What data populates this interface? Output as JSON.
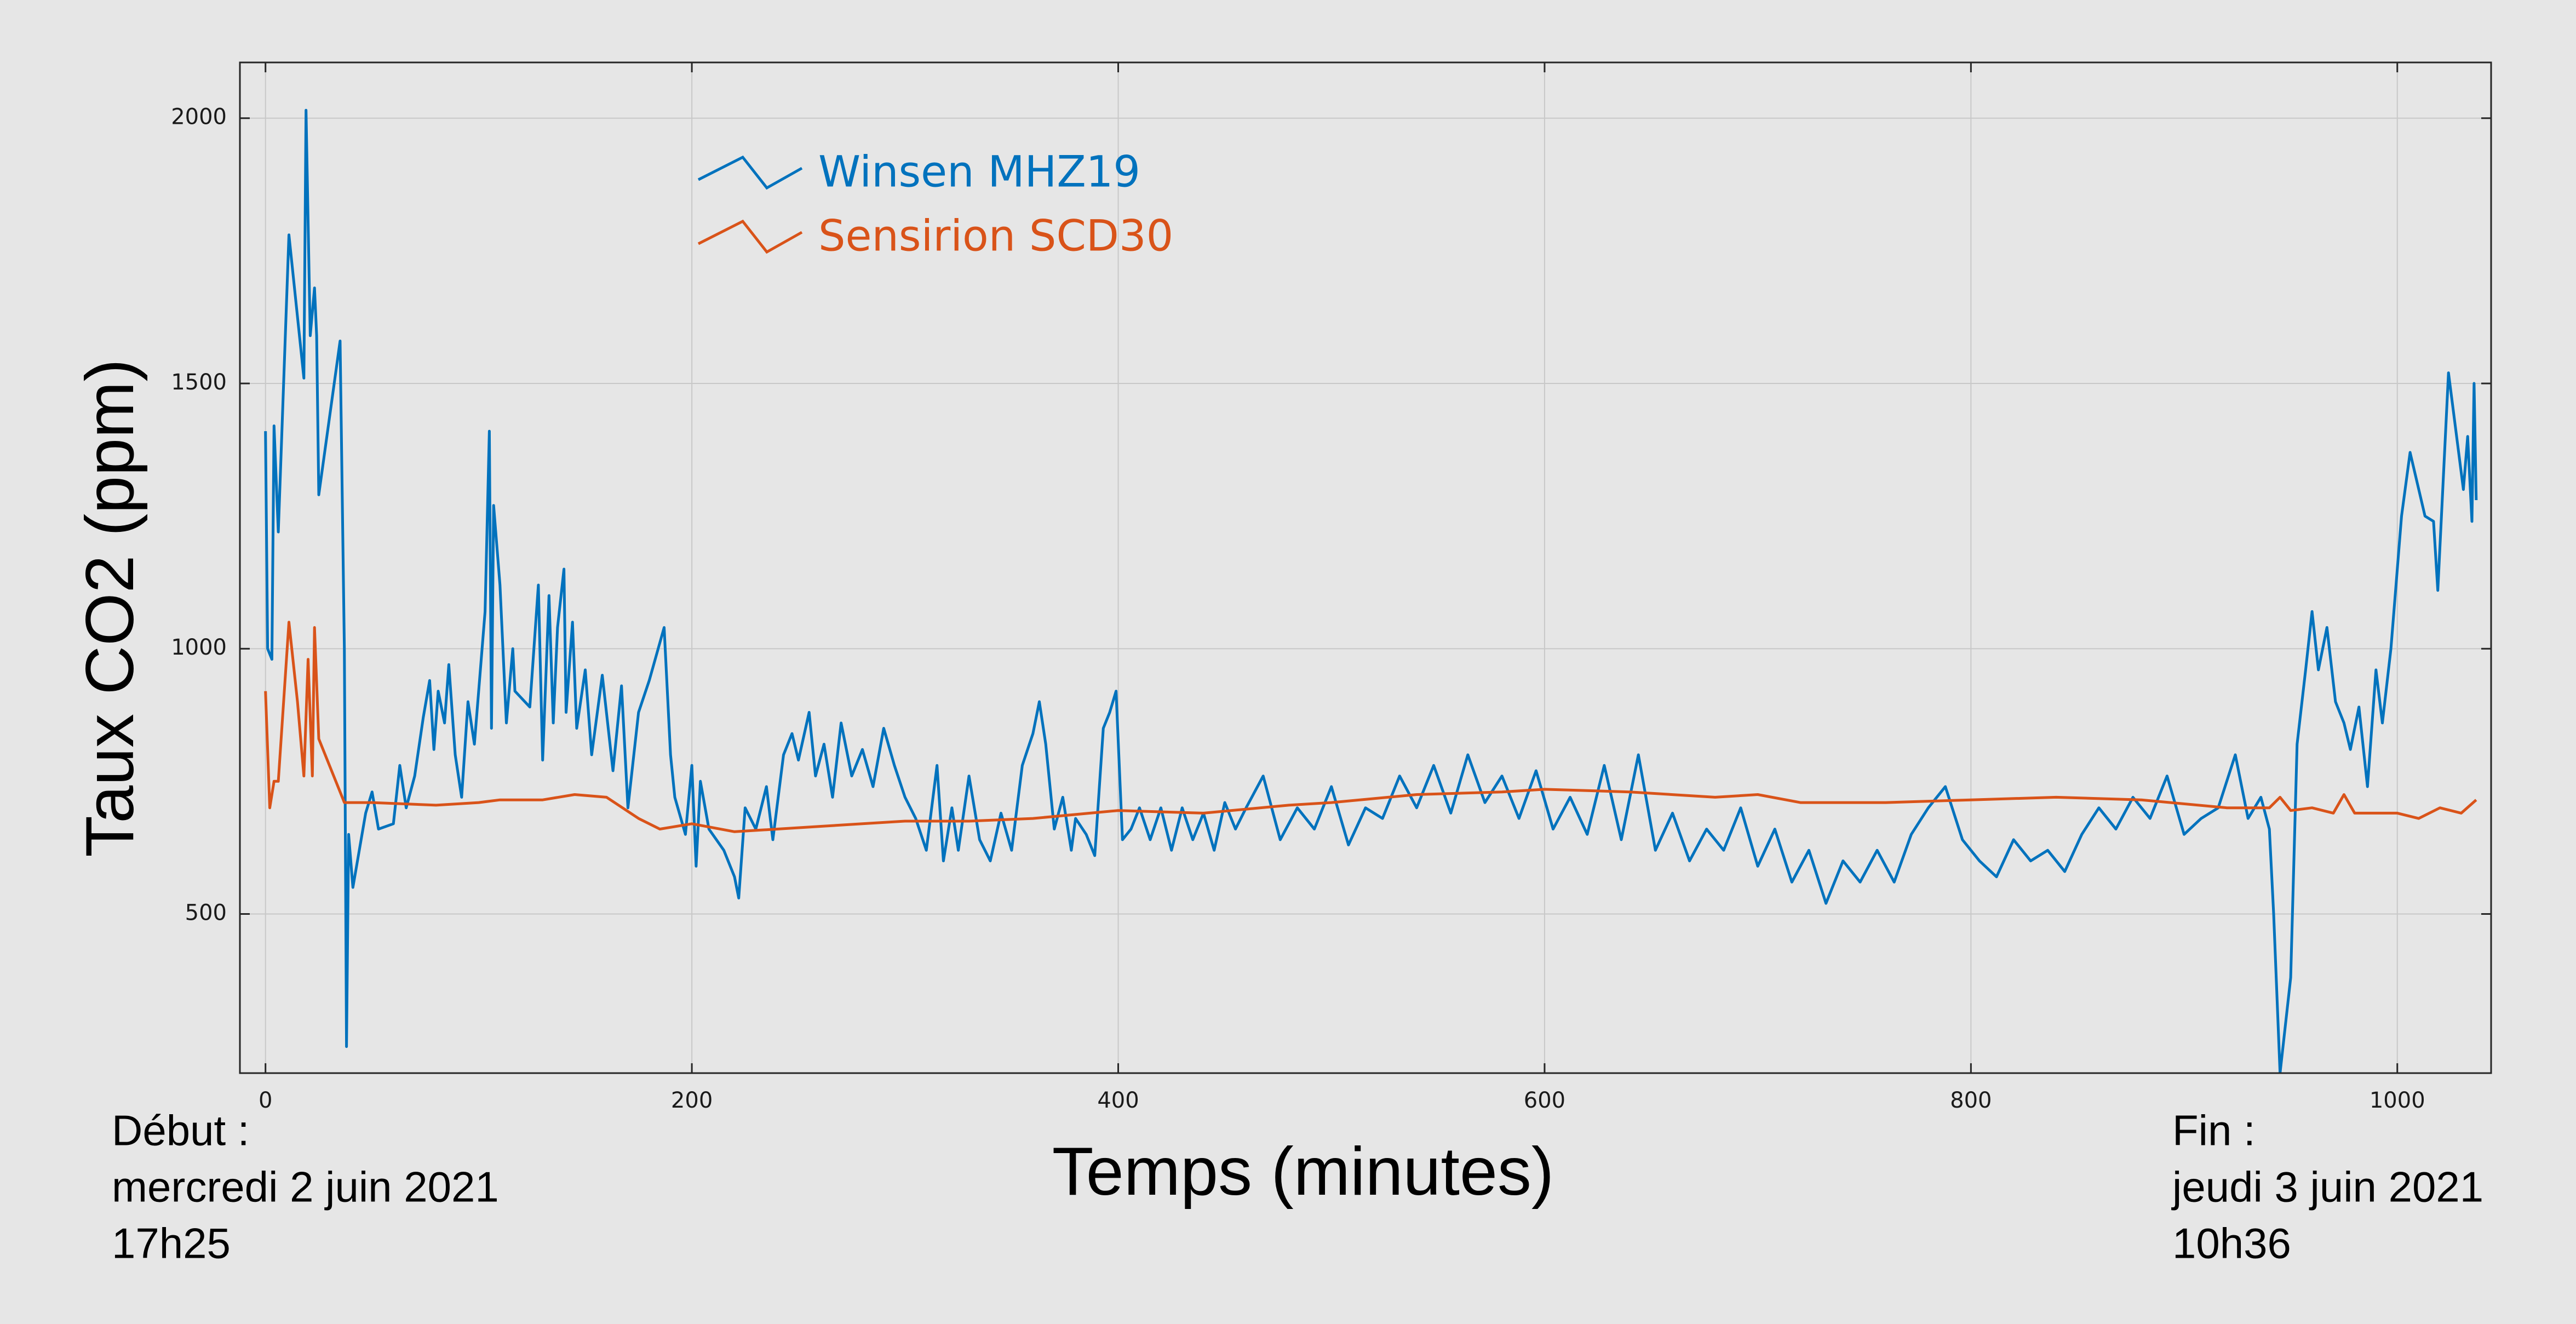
{
  "chart_data": {
    "type": "line",
    "xlabel": "Temps (minutes)",
    "ylabel": "Taux CO2 (ppm)",
    "annotations_left": [
      "Début :",
      "mercredi 2 juin 2021",
      "17h25"
    ],
    "annotations_right": [
      "Fin :",
      "jeudi 3 juin 2021",
      "10h36"
    ],
    "xlim": [
      -12,
      1044
    ],
    "ylim": [
      200,
      2105
    ],
    "xticks": [
      0,
      200,
      400,
      600,
      800,
      1000
    ],
    "yticks": [
      500,
      1000,
      1500,
      2000
    ],
    "grid": true,
    "legend": "upper left",
    "series": [
      {
        "name": "Winsen MHZ19",
        "color": "#0072bd",
        "x": [
          0,
          1,
          3,
          4,
          6,
          11,
          18,
          19,
          21,
          23,
          24,
          25,
          35,
          37,
          38,
          39,
          41,
          47,
          50,
          53,
          60,
          63,
          66,
          70,
          74,
          77,
          79,
          81,
          84,
          86,
          89,
          92,
          95,
          98,
          100,
          103,
          105,
          106,
          107,
          110,
          113,
          116,
          117,
          124,
          128,
          130,
          133,
          135,
          137,
          140,
          141,
          144,
          146,
          150,
          153,
          158,
          163,
          167,
          170,
          175,
          180,
          187,
          190,
          192,
          197,
          200,
          202,
          204,
          208,
          215,
          220,
          222,
          225,
          230,
          235,
          238,
          243,
          247,
          250,
          255,
          258,
          262,
          266,
          270,
          275,
          280,
          285,
          290,
          295,
          300,
          305,
          310,
          315,
          318,
          322,
          325,
          330,
          335,
          340,
          345,
          350,
          355,
          360,
          363,
          366,
          370,
          374,
          378,
          380,
          385,
          389,
          393,
          396,
          399,
          402,
          406,
          410,
          415,
          420,
          425,
          430,
          435,
          440,
          445,
          450,
          455,
          460,
          468,
          476,
          484,
          492,
          500,
          508,
          516,
          524,
          532,
          540,
          548,
          556,
          564,
          572,
          580,
          588,
          596,
          604,
          612,
          620,
          628,
          636,
          644,
          652,
          660,
          668,
          676,
          684,
          692,
          700,
          708,
          716,
          724,
          732,
          740,
          748,
          756,
          764,
          772,
          780,
          788,
          796,
          804,
          812,
          820,
          828,
          836,
          844,
          852,
          860,
          868,
          876,
          884,
          892,
          900,
          908,
          916,
          924,
          930,
          936,
          940,
          942,
          945,
          950,
          953,
          957,
          960,
          963,
          967,
          971,
          975,
          978,
          982,
          986,
          990,
          993,
          997,
          1002,
          1006,
          1013,
          1017,
          1019,
          1024,
          1031,
          1033,
          1035,
          1036,
          1037
        ],
        "values": [
          1410,
          1000,
          980,
          1420,
          1220,
          1780,
          1510,
          2015,
          1590,
          1680,
          1590,
          1290,
          1580,
          1000,
          250,
          650,
          550,
          690,
          730,
          660,
          670,
          780,
          700,
          760,
          870,
          940,
          810,
          920,
          860,
          970,
          800,
          720,
          900,
          820,
          920,
          1070,
          1410,
          850,
          1270,
          1120,
          860,
          1000,
          920,
          890,
          1120,
          790,
          1100,
          860,
          1040,
          1150,
          880,
          1050,
          850,
          960,
          800,
          950,
          770,
          930,
          700,
          880,
          940,
          1040,
          800,
          720,
          650,
          780,
          590,
          750,
          660,
          620,
          570,
          530,
          700,
          660,
          740,
          640,
          800,
          840,
          790,
          880,
          760,
          820,
          720,
          860,
          760,
          810,
          740,
          850,
          780,
          720,
          680,
          620,
          780,
          600,
          700,
          620,
          760,
          640,
          600,
          690,
          620,
          780,
          840,
          900,
          820,
          660,
          720,
          620,
          680,
          650,
          610,
          850,
          880,
          920,
          640,
          660,
          700,
          640,
          700,
          620,
          700,
          640,
          690,
          620,
          710,
          660,
          700,
          760,
          640,
          700,
          660,
          740,
          630,
          700,
          680,
          760,
          700,
          780,
          690,
          800,
          710,
          760,
          680,
          770,
          660,
          720,
          650,
          780,
          640,
          800,
          620,
          690,
          600,
          660,
          620,
          700,
          590,
          660,
          560,
          620,
          520,
          600,
          560,
          620,
          560,
          650,
          700,
          740,
          640,
          600,
          570,
          640,
          600,
          620,
          580,
          650,
          700,
          660,
          720,
          680,
          760,
          650,
          680,
          700,
          800,
          680,
          720,
          660,
          500,
          200,
          380,
          820,
          960,
          1070,
          960,
          1040,
          900,
          860,
          810,
          890,
          740,
          960,
          860,
          1000,
          1250,
          1370,
          1250,
          1240,
          1110,
          1520,
          1300,
          1400,
          1240,
          1500,
          1280
        ]
      },
      {
        "name": "Sensirion SCD30",
        "color": "#d95319",
        "x": [
          0,
          2,
          4,
          6,
          11,
          15,
          18,
          20,
          22,
          23,
          25,
          37,
          50,
          80,
          100,
          110,
          130,
          145,
          160,
          175,
          185,
          200,
          220,
          240,
          260,
          280,
          300,
          330,
          360,
          400,
          440,
          480,
          500,
          540,
          580,
          600,
          640,
          680,
          700,
          720,
          760,
          800,
          840,
          880,
          920,
          940,
          945,
          950,
          960,
          970,
          975,
          980,
          1000,
          1010,
          1020,
          1030,
          1037
        ],
        "values": [
          920,
          700,
          750,
          750,
          1050,
          900,
          760,
          980,
          760,
          1040,
          830,
          710,
          710,
          705,
          710,
          715,
          715,
          725,
          720,
          680,
          660,
          670,
          655,
          660,
          665,
          670,
          675,
          675,
          680,
          695,
          690,
          705,
          710,
          725,
          730,
          735,
          730,
          720,
          725,
          710,
          710,
          715,
          720,
          715,
          700,
          700,
          720,
          695,
          700,
          690,
          725,
          690,
          690,
          680,
          700,
          690,
          715
        ]
      }
    ]
  }
}
